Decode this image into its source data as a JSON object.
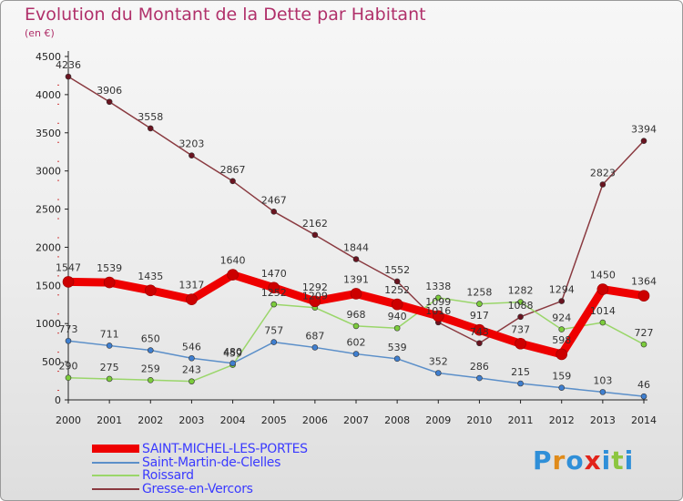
{
  "title": "Evolution du Montant de la Dette par Habitant",
  "subtitle": "(en €)",
  "logo": {
    "text": "Proxiti",
    "colors": [
      "#2f8fd8",
      "#e08b1a",
      "#2f8fd8",
      "#e2231a",
      "#2f8fd8",
      "#8cc63f",
      "#2f8fd8"
    ]
  },
  "chart_data": {
    "type": "line",
    "x": [
      2000,
      2001,
      2002,
      2003,
      2004,
      2005,
      2006,
      2007,
      2008,
      2009,
      2010,
      2011,
      2012,
      2013,
      2014
    ],
    "ylim": [
      0,
      4500
    ],
    "yticks": [
      0,
      500,
      1000,
      1500,
      2000,
      2500,
      3000,
      3500,
      4000,
      4500
    ],
    "grid": false,
    "legend_position": "bottom-left",
    "series": [
      {
        "name": "SAINT-MICHEL-LES-PORTES",
        "color": "#ee0000",
        "marker_color": "#cc0000",
        "width": 9,
        "values": [
          1547,
          1539,
          1435,
          1317,
          1640,
          1470,
          1292,
          1391,
          1252,
          1099,
          917,
          737,
          598,
          1450,
          1364
        ]
      },
      {
        "name": "Saint-Martin-de-Clelles",
        "color": "#5b8fc9",
        "marker_color": "#3f7fd0",
        "width": 1.5,
        "values": [
          773,
          711,
          650,
          546,
          480,
          757,
          687,
          602,
          539,
          352,
          286,
          215,
          159,
          103,
          46
        ]
      },
      {
        "name": "Roissard",
        "color": "#9ad66a",
        "marker_color": "#7ccc3c",
        "width": 1.5,
        "values": [
          290,
          275,
          259,
          243,
          459,
          1252,
          1209,
          968,
          940,
          1338,
          1258,
          1282,
          924,
          1014,
          727
        ]
      },
      {
        "name": "Gresse-en-Vercors",
        "color": "#8a3a40",
        "marker_color": "#6a1420",
        "width": 1.5,
        "values": [
          4236,
          3906,
          3558,
          3203,
          2867,
          2467,
          2162,
          1844,
          1552,
          1016,
          743,
          1088,
          1294,
          2823,
          3394
        ]
      }
    ]
  }
}
